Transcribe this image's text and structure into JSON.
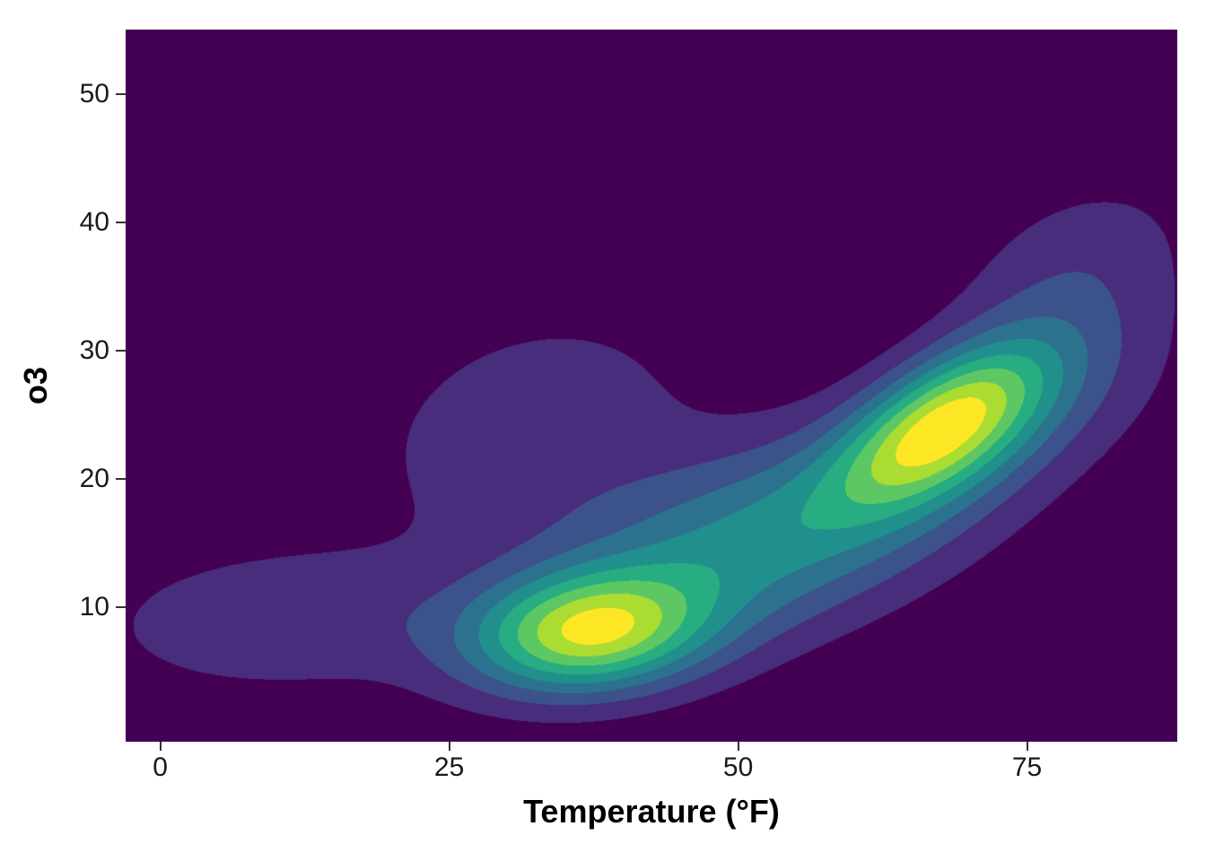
{
  "figure": {
    "background_color": "#FFFFFF"
  },
  "chart_data": {
    "type": "heatmap",
    "subtype": "filled_2d_density_contour",
    "title": "",
    "xlabel": "Temperature (°F)",
    "ylabel": "o3",
    "xlim": [
      -3,
      88
    ],
    "ylim": [
      -0.5,
      55
    ],
    "x_ticks": [
      "0",
      "25",
      "50",
      "75"
    ],
    "x_tick_values": [
      0,
      25,
      50,
      75
    ],
    "y_ticks": [
      "10",
      "20",
      "30",
      "40",
      "50"
    ],
    "y_tick_values": [
      10,
      20,
      30,
      40,
      50
    ],
    "grid": false,
    "legend_position": "none",
    "palette": "viridis",
    "n_levels": 9,
    "level_colors": [
      "#440154",
      "#472D7B",
      "#3B528B",
      "#2C728E",
      "#21908C",
      "#27AD81",
      "#5DC863",
      "#AADC32",
      "#FDE725"
    ],
    "panel_background_color": "#440154",
    "axis_text_color": "#1a1a1a",
    "axis_title_color": "#000000",
    "tick_color": "#333333",
    "density_peaks": [
      {
        "x": 37,
        "y": 8
      },
      {
        "x": 68,
        "y": 24
      }
    ],
    "density_model": {
      "kind": "gaussian_mixture",
      "note": "bands are equal-width slices of density from 0 to max",
      "components": [
        {
          "mx": 37,
          "my": 8,
          "sx": 7,
          "sy": 3.2,
          "rho": 0.15,
          "w": 1.08
        },
        {
          "mx": 66,
          "my": 22.5,
          "sx": 6,
          "sy": 4,
          "rho": 0.5,
          "w": 0.65
        },
        {
          "mx": 70,
          "my": 26,
          "sx": 6,
          "sy": 4,
          "rho": 0.5,
          "w": 0.65
        },
        {
          "mx": 52,
          "my": 15,
          "sx": 14,
          "sy": 6.5,
          "rho": 0.55,
          "w": 0.75
        },
        {
          "mx": 10,
          "my": 9,
          "sx": 11,
          "sy": 4,
          "rho": 0.1,
          "w": 0.32
        },
        {
          "mx": 32,
          "my": 24,
          "sx": 10,
          "sy": 6.5,
          "rho": 0.25,
          "w": 0.3
        },
        {
          "mx": 79,
          "my": 36,
          "sx": 7.5,
          "sy": 5.5,
          "rho": 0.35,
          "w": 0.28
        },
        {
          "mx": 78,
          "my": 27,
          "sx": 8,
          "sy": 5,
          "rho": 0.4,
          "w": 0.2
        }
      ]
    }
  }
}
